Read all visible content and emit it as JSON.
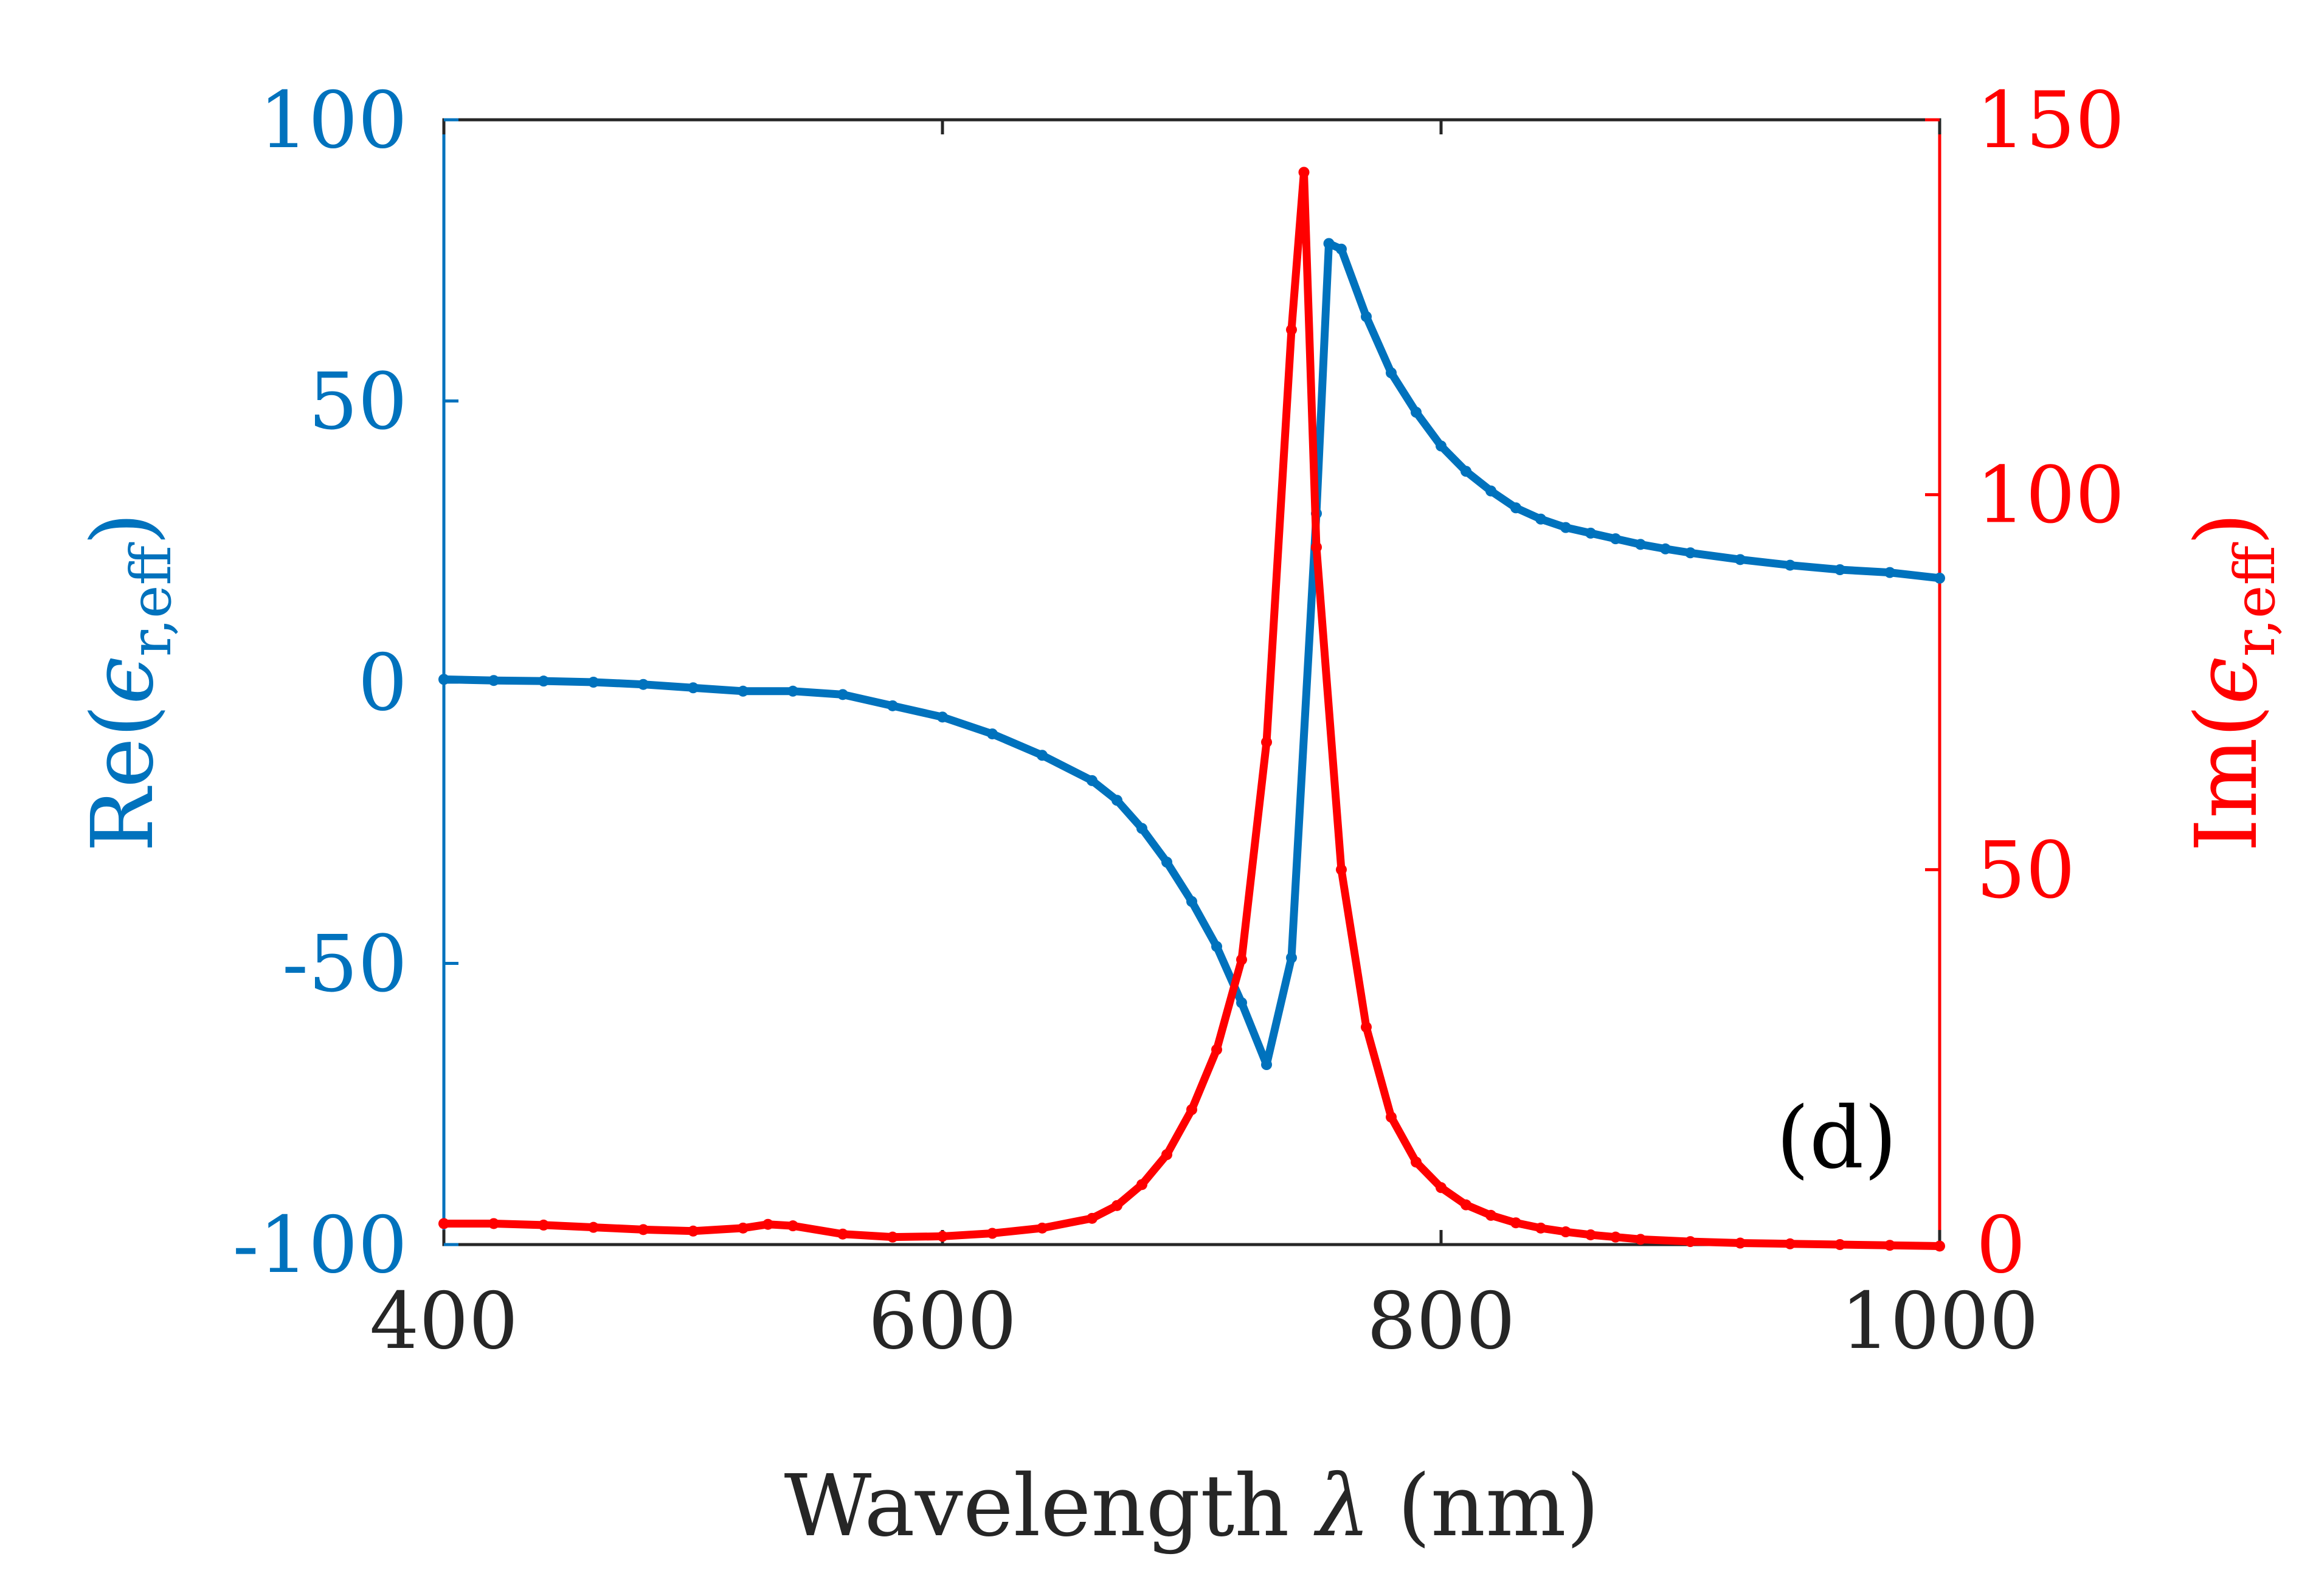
{
  "chart_data": {
    "type": "line",
    "dual_axis": true,
    "panel_label": "(d)",
    "xlabel_main": "Wavelength ",
    "xlabel_symbol": "λ",
    "xlabel_unit": " (nm)",
    "xlim": [
      400,
      1000
    ],
    "x_ticks": [
      400,
      600,
      800,
      1000
    ],
    "x_tick_labels": [
      "400",
      "600",
      "800",
      "1000"
    ],
    "left_axis": {
      "label_prefix": "Re(",
      "label_symbol": "ϵ",
      "label_subscript": "r,eff",
      "label_suffix": ")",
      "ylim": [
        -100,
        100
      ],
      "ticks": [
        -100,
        -50,
        0,
        50,
        100
      ],
      "tick_labels": [
        "-100",
        "-50",
        "0",
        "50",
        "100"
      ],
      "color": "#0072BD"
    },
    "right_axis": {
      "label_prefix": "Im(",
      "label_symbol": "ϵ",
      "label_subscript": "r,eff",
      "label_suffix": ")",
      "ylim": [
        0,
        150
      ],
      "ticks": [
        0,
        50,
        100,
        150
      ],
      "tick_labels": [
        "0",
        "50",
        "100",
        "150"
      ],
      "color": "#FF0000"
    },
    "series": [
      {
        "name": "Re(ϵ_r,eff)",
        "axis": "left",
        "color": "#0072BD",
        "x": [
          400,
          420,
          440,
          460,
          480,
          500,
          520,
          540,
          560,
          580,
          600,
          620,
          640,
          660,
          670,
          680,
          690,
          700,
          710,
          720,
          730,
          740,
          750,
          755,
          760,
          770,
          780,
          790,
          800,
          810,
          820,
          830,
          840,
          850,
          860,
          870,
          880,
          890,
          900,
          920,
          940,
          960,
          980,
          1000
        ],
        "y": [
          0.5,
          0.3,
          0.2,
          0.0,
          -0.4,
          -1.0,
          -1.6,
          -1.6,
          -2.2,
          -4.2,
          -6.2,
          -9.2,
          -13.0,
          -17.5,
          -21.0,
          -26.0,
          -32.0,
          -39.0,
          -47.0,
          -57.0,
          -68.0,
          -49.0,
          30.0,
          78.0,
          77.0,
          65.0,
          55.0,
          48.0,
          42.0,
          37.5,
          34.0,
          31.0,
          29.0,
          27.5,
          26.5,
          25.5,
          24.5,
          23.7,
          23.0,
          21.8,
          20.8,
          20.0,
          19.5,
          18.5
        ]
      },
      {
        "name": "Im(ϵ_r,eff)",
        "axis": "right",
        "color": "#FF0000",
        "x": [
          400,
          420,
          440,
          460,
          480,
          500,
          520,
          530,
          540,
          560,
          580,
          600,
          620,
          640,
          660,
          670,
          680,
          690,
          700,
          710,
          720,
          730,
          740,
          745,
          750,
          760,
          770,
          780,
          790,
          800,
          810,
          820,
          830,
          840,
          850,
          860,
          870,
          880,
          900,
          920,
          940,
          960,
          980,
          1000
        ],
        "y": [
          2.8,
          2.8,
          2.6,
          2.3,
          2.0,
          1.8,
          2.2,
          2.7,
          2.5,
          1.4,
          1.0,
          1.1,
          1.5,
          2.2,
          3.5,
          5.2,
          8.0,
          12.0,
          18.0,
          26.0,
          38.0,
          67.0,
          122.0,
          143.0,
          93.0,
          50.0,
          29.0,
          17.0,
          11.0,
          7.6,
          5.3,
          3.9,
          2.9,
          2.2,
          1.7,
          1.3,
          1.0,
          0.7,
          0.4,
          0.2,
          0.1,
          0.0,
          -0.1,
          -0.2
        ]
      }
    ]
  }
}
